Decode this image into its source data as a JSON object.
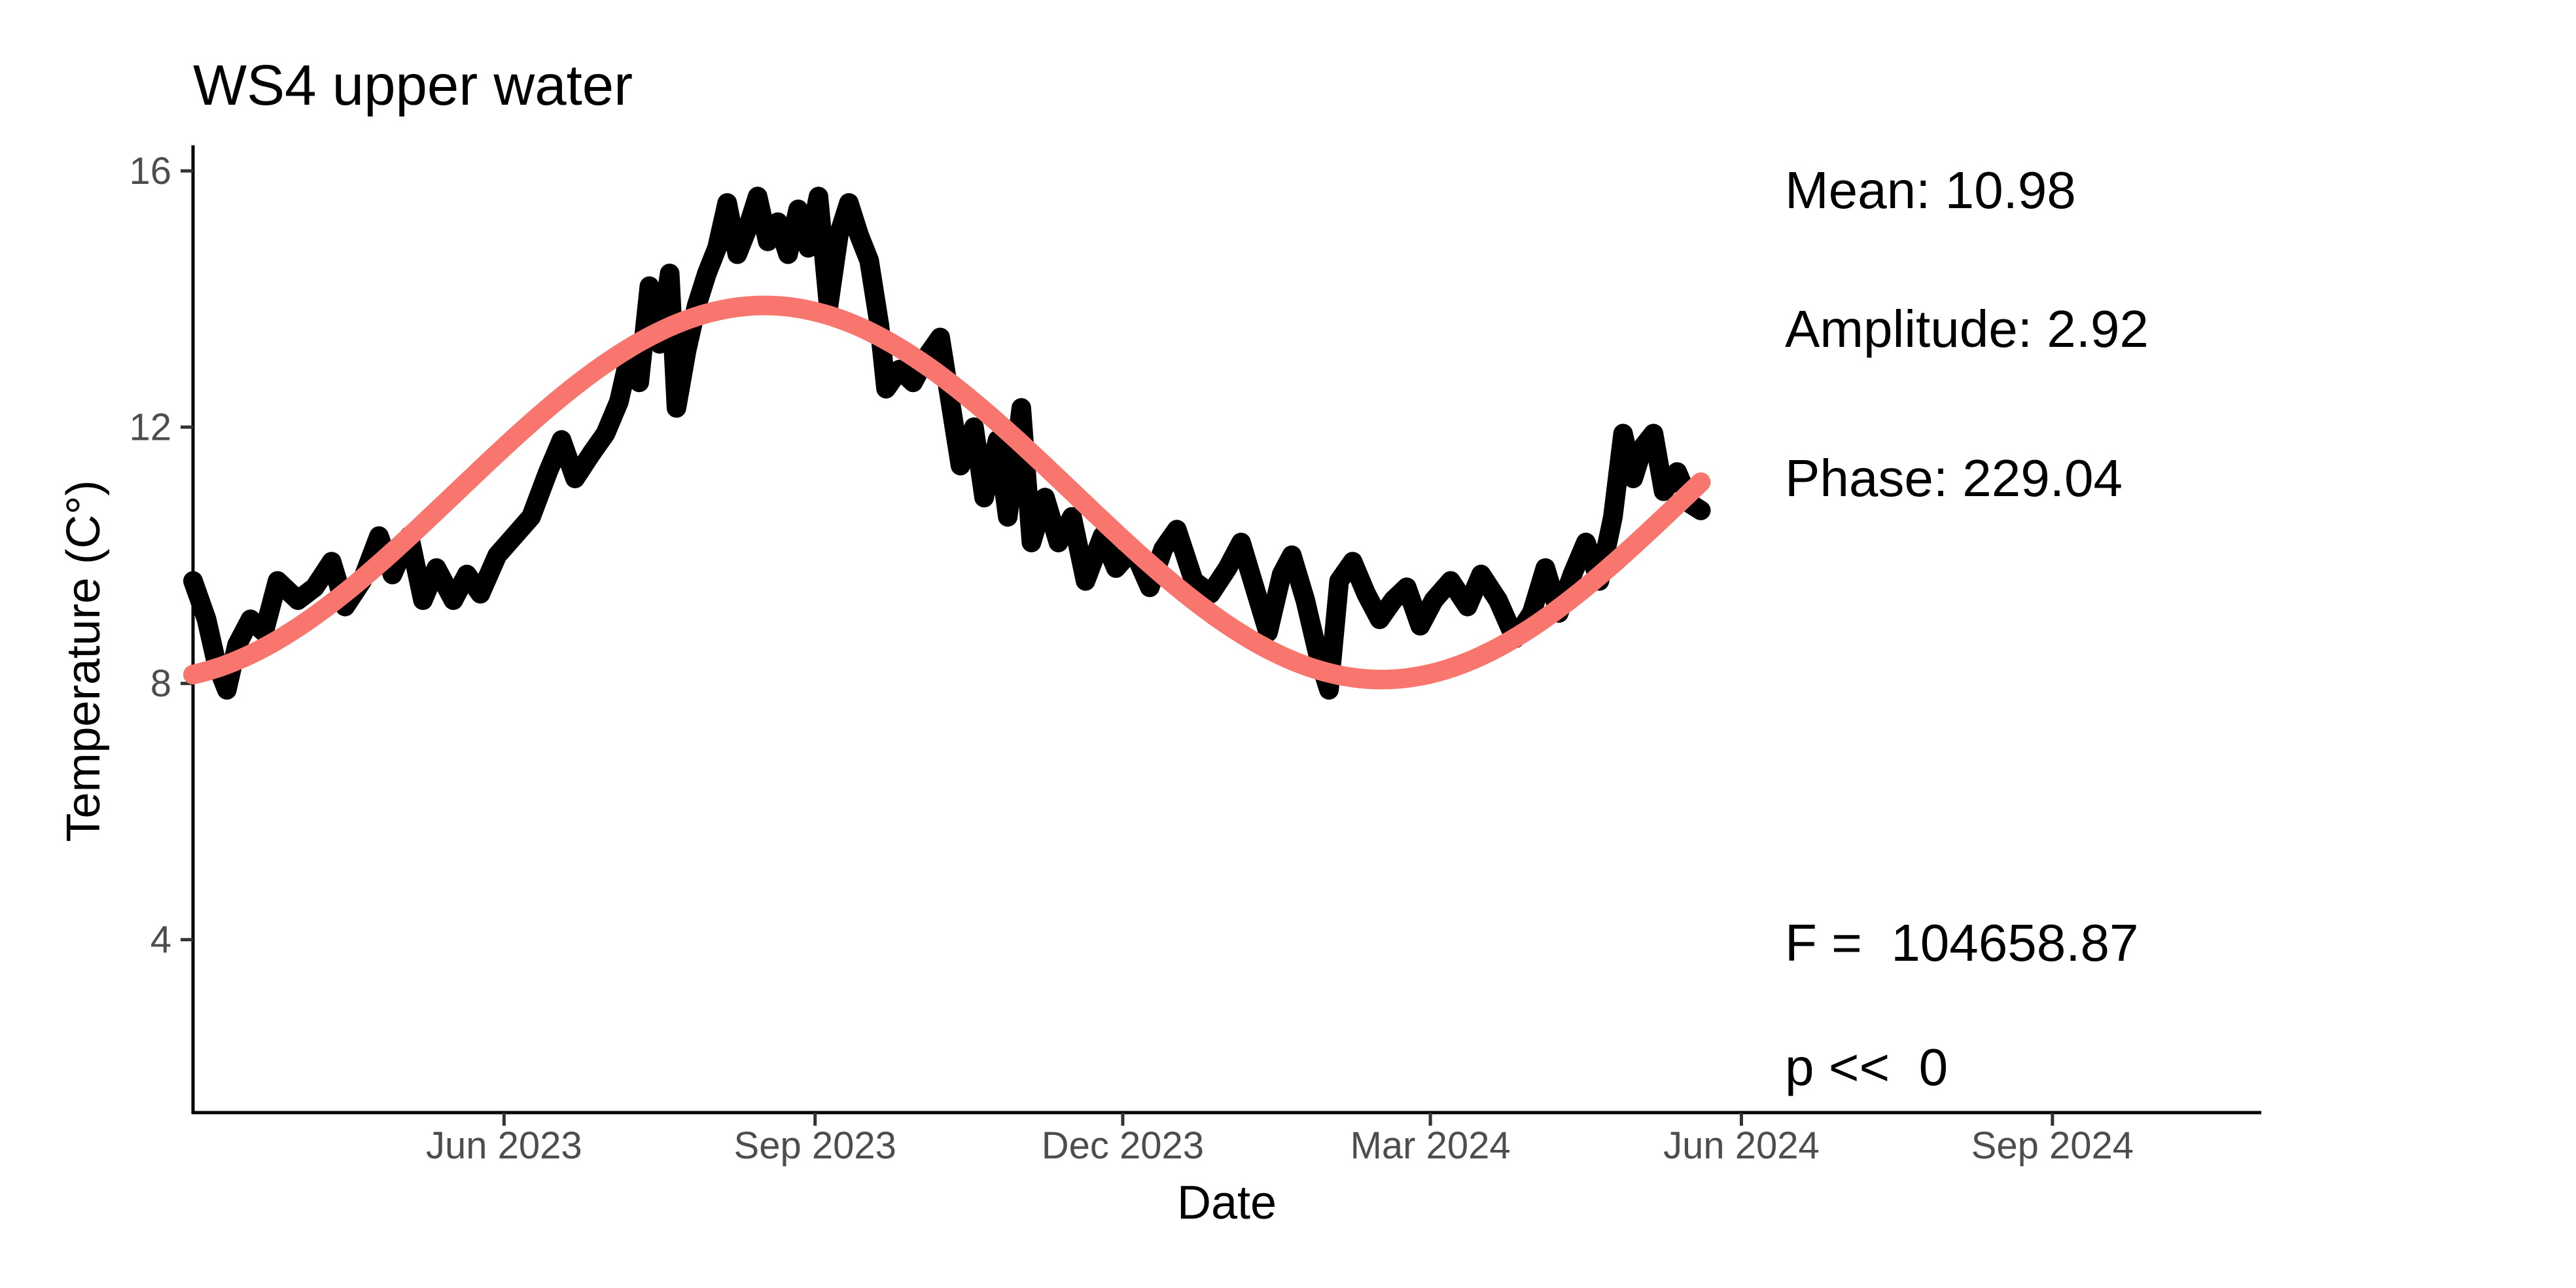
{
  "chart_data": {
    "type": "line",
    "title": "WS4 upper water",
    "xlabel": "Date",
    "ylabel": "Temperature (C°)",
    "x_axis": {
      "type": "date",
      "range": [
        "2023-03-01",
        "2024-11-01"
      ],
      "ticks": [
        {
          "date": "2023-06-01",
          "label": "Jun 2023"
        },
        {
          "date": "2023-09-01",
          "label": "Sep 2023"
        },
        {
          "date": "2023-12-01",
          "label": "Dec 2023"
        },
        {
          "date": "2024-03-01",
          "label": "Mar 2024"
        },
        {
          "date": "2024-06-01",
          "label": "Jun 2024"
        },
        {
          "date": "2024-09-01",
          "label": "Sep 2024"
        }
      ]
    },
    "y_axis": {
      "range": [
        1.3,
        16.4
      ],
      "ticks": [
        4,
        8,
        12,
        16
      ]
    },
    "grid": false,
    "legend": "none",
    "series": [
      {
        "role": "observed",
        "color": "#000000",
        "points": [
          [
            "2023-03-01",
            9.6
          ],
          [
            "2023-03-05",
            9.0
          ],
          [
            "2023-03-08",
            8.3
          ],
          [
            "2023-03-11",
            7.9
          ],
          [
            "2023-03-14",
            8.6
          ],
          [
            "2023-03-18",
            9.0
          ],
          [
            "2023-03-22",
            8.8
          ],
          [
            "2023-03-26",
            9.6
          ],
          [
            "2023-04-01",
            9.3
          ],
          [
            "2023-04-06",
            9.5
          ],
          [
            "2023-04-11",
            9.9
          ],
          [
            "2023-04-15",
            9.2
          ],
          [
            "2023-04-20",
            9.6
          ],
          [
            "2023-04-25",
            10.3
          ],
          [
            "2023-04-29",
            9.7
          ],
          [
            "2023-05-04",
            10.3
          ],
          [
            "2023-05-08",
            9.3
          ],
          [
            "2023-05-12",
            9.8
          ],
          [
            "2023-05-17",
            9.3
          ],
          [
            "2023-05-21",
            9.7
          ],
          [
            "2023-05-25",
            9.4
          ],
          [
            "2023-05-30",
            10.0
          ],
          [
            "2023-06-04",
            10.3
          ],
          [
            "2023-06-09",
            10.6
          ],
          [
            "2023-06-14",
            11.3
          ],
          [
            "2023-06-18",
            11.8
          ],
          [
            "2023-06-22",
            11.2
          ],
          [
            "2023-06-27",
            11.6
          ],
          [
            "2023-07-01",
            11.9
          ],
          [
            "2023-07-05",
            12.4
          ],
          [
            "2023-07-08",
            13.1
          ],
          [
            "2023-07-11",
            12.7
          ],
          [
            "2023-07-14",
            14.2
          ],
          [
            "2023-07-17",
            13.3
          ],
          [
            "2023-07-20",
            14.4
          ],
          [
            "2023-07-22",
            12.3
          ],
          [
            "2023-07-25",
            13.2
          ],
          [
            "2023-07-28",
            13.9
          ],
          [
            "2023-07-31",
            14.4
          ],
          [
            "2023-08-03",
            14.8
          ],
          [
            "2023-08-06",
            15.5
          ],
          [
            "2023-08-09",
            14.7
          ],
          [
            "2023-08-12",
            15.1
          ],
          [
            "2023-08-15",
            15.6
          ],
          [
            "2023-08-18",
            14.9
          ],
          [
            "2023-08-21",
            15.2
          ],
          [
            "2023-08-24",
            14.7
          ],
          [
            "2023-08-27",
            15.4
          ],
          [
            "2023-08-30",
            14.8
          ],
          [
            "2023-09-02",
            15.6
          ],
          [
            "2023-09-05",
            13.9
          ],
          [
            "2023-09-08",
            15.0
          ],
          [
            "2023-09-11",
            15.5
          ],
          [
            "2023-09-14",
            15.0
          ],
          [
            "2023-09-17",
            14.6
          ],
          [
            "2023-09-20",
            13.6
          ],
          [
            "2023-09-22",
            12.6
          ],
          [
            "2023-09-26",
            12.9
          ],
          [
            "2023-09-30",
            12.7
          ],
          [
            "2023-10-04",
            13.1
          ],
          [
            "2023-10-08",
            13.4
          ],
          [
            "2023-10-11",
            12.4
          ],
          [
            "2023-10-14",
            11.4
          ],
          [
            "2023-10-18",
            12.0
          ],
          [
            "2023-10-21",
            10.9
          ],
          [
            "2023-10-25",
            11.8
          ],
          [
            "2023-10-28",
            10.6
          ],
          [
            "2023-11-01",
            12.3
          ],
          [
            "2023-11-04",
            10.2
          ],
          [
            "2023-11-08",
            10.9
          ],
          [
            "2023-11-12",
            10.2
          ],
          [
            "2023-11-16",
            10.6
          ],
          [
            "2023-11-20",
            9.6
          ],
          [
            "2023-11-25",
            10.3
          ],
          [
            "2023-11-29",
            9.8
          ],
          [
            "2023-12-04",
            10.1
          ],
          [
            "2023-12-09",
            9.5
          ],
          [
            "2023-12-13",
            10.1
          ],
          [
            "2023-12-17",
            10.4
          ],
          [
            "2023-12-22",
            9.6
          ],
          [
            "2023-12-27",
            9.4
          ],
          [
            "2024-01-01",
            9.8
          ],
          [
            "2024-01-05",
            10.2
          ],
          [
            "2024-01-09",
            9.5
          ],
          [
            "2024-01-13",
            8.8
          ],
          [
            "2024-01-17",
            9.7
          ],
          [
            "2024-01-20",
            10.0
          ],
          [
            "2024-01-24",
            9.3
          ],
          [
            "2024-01-28",
            8.4
          ],
          [
            "2024-01-31",
            7.9
          ],
          [
            "2024-02-03",
            9.6
          ],
          [
            "2024-02-07",
            9.9
          ],
          [
            "2024-02-11",
            9.4
          ],
          [
            "2024-02-15",
            9.0
          ],
          [
            "2024-02-19",
            9.3
          ],
          [
            "2024-02-23",
            9.5
          ],
          [
            "2024-02-27",
            8.9
          ],
          [
            "2024-03-02",
            9.3
          ],
          [
            "2024-03-07",
            9.6
          ],
          [
            "2024-03-12",
            9.2
          ],
          [
            "2024-03-16",
            9.7
          ],
          [
            "2024-03-21",
            9.3
          ],
          [
            "2024-03-26",
            8.7
          ],
          [
            "2024-03-31",
            9.1
          ],
          [
            "2024-04-04",
            9.8
          ],
          [
            "2024-04-08",
            9.1
          ],
          [
            "2024-04-12",
            9.7
          ],
          [
            "2024-04-16",
            10.2
          ],
          [
            "2024-04-20",
            9.6
          ],
          [
            "2024-04-24",
            10.6
          ],
          [
            "2024-04-27",
            11.9
          ],
          [
            "2024-04-30",
            11.2
          ],
          [
            "2024-05-03",
            11.7
          ],
          [
            "2024-05-06",
            11.9
          ],
          [
            "2024-05-09",
            11.0
          ],
          [
            "2024-05-13",
            11.3
          ],
          [
            "2024-05-17",
            10.8
          ],
          [
            "2024-05-20",
            10.7
          ]
        ]
      },
      {
        "role": "fitted",
        "color": "#F8766D",
        "function": "sinusoid",
        "mean": 10.98,
        "amplitude": 2.92,
        "phase": 229.04,
        "x_range": [
          "2023-03-01",
          "2024-05-20"
        ]
      }
    ],
    "annotations": {
      "mean": "Mean: 10.98",
      "amplitude": "Amplitude: 2.92",
      "phase": "Phase: 229.04",
      "f_stat": "F =  104658.87",
      "p_value": "p <<  0"
    }
  }
}
